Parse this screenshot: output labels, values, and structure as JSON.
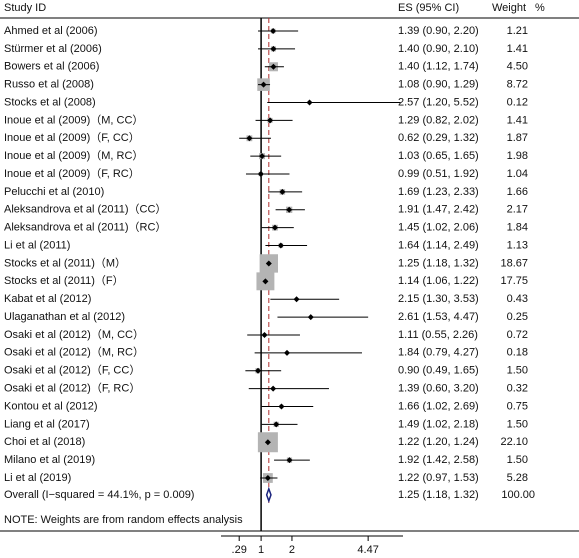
{
  "chart_data": {
    "type": "forest",
    "headers": {
      "study": "Study ID",
      "es": "ES (95% CI)",
      "weight": "Weight",
      "pct": "%"
    },
    "categories": [
      "Ahmed et al (2006)",
      "Stürmer et al (2006)",
      "Bowers et al (2006)",
      "Russo et al (2008)",
      "Stocks et al (2008)",
      "Inoue et al (2009)（M, CC）",
      "Inoue et al (2009)（F, CC）",
      "Inoue et al (2009)（M, RC）",
      "Inoue et al (2009)（F, RC）",
      "Pelucchi et al (2010)",
      "Aleksandrova et al (2011)（CC）",
      "Aleksandrova et al (2011)（RC）",
      "Li et al (2011)",
      "Stocks et al (2011)（M）",
      "Stocks et al (2011)（F）",
      "Kabat et al (2012)",
      "Ulaganathan et al (2012)",
      "Osaki et al (2012)（M, CC）",
      "Osaki et al (2012)（M, RC）",
      "Osaki et al (2012)（F, CC）",
      "Osaki et al (2012)（F, RC）",
      "Kontou et al (2012)",
      "Liang et al (2017)",
      "Choi et al (2018)",
      "Milano et al (2019)",
      "Li et al (2019)"
    ],
    "values": [
      1.39,
      1.4,
      1.4,
      1.08,
      2.57,
      1.29,
      0.62,
      1.03,
      0.99,
      1.69,
      1.91,
      1.45,
      1.64,
      1.25,
      1.14,
      2.15,
      2.61,
      1.11,
      1.84,
      0.9,
      1.39,
      1.66,
      1.49,
      1.22,
      1.92,
      1.22
    ],
    "lower": [
      0.9,
      0.9,
      1.12,
      0.9,
      1.2,
      0.82,
      0.29,
      0.65,
      0.51,
      1.23,
      1.47,
      1.02,
      1.14,
      1.18,
      1.06,
      1.3,
      1.53,
      0.55,
      0.79,
      0.49,
      0.6,
      1.02,
      1.02,
      1.2,
      1.42,
      0.97
    ],
    "upper": [
      2.2,
      2.1,
      1.74,
      1.29,
      5.52,
      2.02,
      1.32,
      1.65,
      1.92,
      2.33,
      2.42,
      2.06,
      2.49,
      1.32,
      1.22,
      3.53,
      4.47,
      2.26,
      4.27,
      1.65,
      3.2,
      2.69,
      2.18,
      1.24,
      2.58,
      1.53
    ],
    "es_labels": [
      "1.39 (0.90, 2.20)",
      "1.40 (0.90, 2.10)",
      "1.40 (1.12, 1.74)",
      "1.08 (0.90, 1.29)",
      "2.57 (1.20, 5.52)",
      "1.29 (0.82, 2.02)",
      "0.62 (0.29, 1.32)",
      "1.03 (0.65, 1.65)",
      "0.99 (0.51, 1.92)",
      "1.69 (1.23, 2.33)",
      "1.91 (1.47, 2.42)",
      "1.45 (1.02, 2.06)",
      "1.64 (1.14, 2.49)",
      "1.25 (1.18, 1.32)",
      "1.14 (1.06, 1.22)",
      "2.15 (1.30, 3.53)",
      "2.61 (1.53, 4.47)",
      "1.11 (0.55, 2.26)",
      "1.84 (0.79, 4.27)",
      "0.90 (0.49, 1.65)",
      "1.39 (0.60, 3.20)",
      "1.66 (1.02, 2.69)",
      "1.49 (1.02, 2.18)",
      "1.22 (1.20, 1.24)",
      "1.92 (1.42, 2.58)",
      "1.22 (0.97, 1.53)"
    ],
    "weights": [
      1.21,
      1.41,
      4.5,
      8.72,
      0.12,
      1.41,
      1.87,
      1.98,
      1.04,
      1.66,
      2.17,
      1.84,
      1.13,
      18.67,
      17.75,
      0.43,
      0.25,
      0.72,
      0.18,
      1.5,
      0.32,
      0.75,
      1.5,
      22.1,
      1.5,
      5.28
    ],
    "weight_labels": [
      "1.21",
      "1.41",
      "4.50",
      "8.72",
      "0.12",
      "1.41",
      "1.87",
      "1.98",
      "1.04",
      "1.66",
      "2.17",
      "1.84",
      "1.13",
      "18.67",
      "17.75",
      "0.43",
      "0.25",
      "0.72",
      "0.18",
      "1.50",
      "0.32",
      "0.75",
      "1.50",
      "22.10",
      "1.50",
      "5.28"
    ],
    "overall": {
      "label": "Overall  (I−squared = 44.1%, p = 0.009)",
      "value": 1.25,
      "lower": 1.18,
      "upper": 1.32,
      "es_label": "1.25 (1.18, 1.32)",
      "weight": 100,
      "weight_label": "100.00"
    },
    "note": "NOTE: Weights are from random effects analysis",
    "xlim": [
      -0.3,
      5.6
    ],
    "xticks": [
      {
        "value": 0.29,
        "label": ".29"
      },
      1,
      2,
      4.47
    ],
    "null_value": 1,
    "box_color": "#b4b4b4",
    "line_color": "#000000",
    "overall_line_color": "#b03030",
    "diamond_color": "#1a237e"
  }
}
